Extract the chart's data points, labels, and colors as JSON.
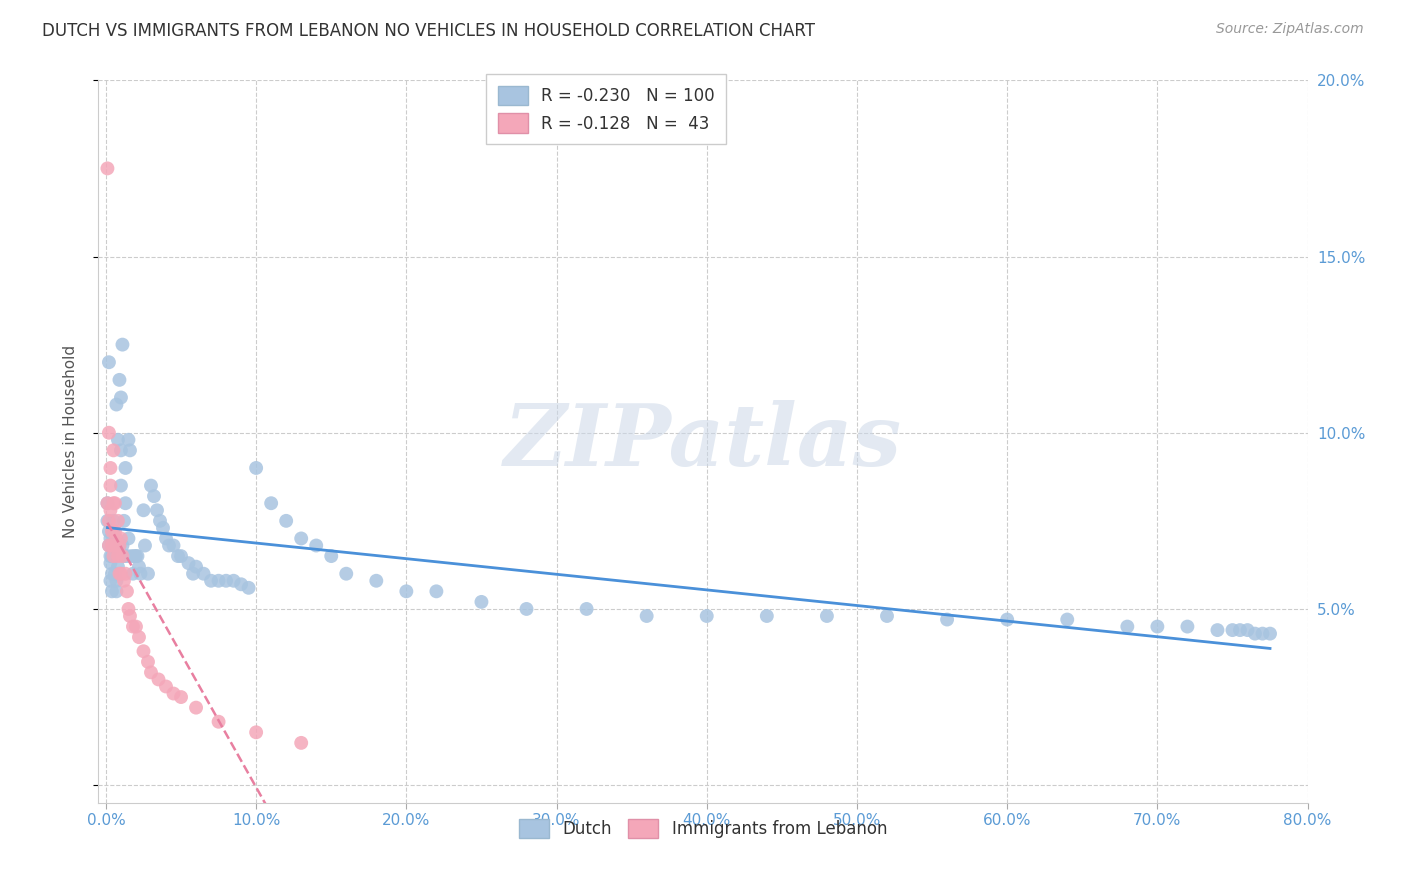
{
  "title": "DUTCH VS IMMIGRANTS FROM LEBANON NO VEHICLES IN HOUSEHOLD CORRELATION CHART",
  "source": "Source: ZipAtlas.com",
  "ylabel": "No Vehicles in Household",
  "xlim": [
    0.0,
    0.8
  ],
  "ylim": [
    0.0,
    0.2
  ],
  "x_ticks": [
    0.0,
    0.1,
    0.2,
    0.3,
    0.4,
    0.5,
    0.6,
    0.7,
    0.8
  ],
  "y_ticks": [
    0.0,
    0.05,
    0.1,
    0.15,
    0.2
  ],
  "dutch_R": -0.23,
  "dutch_N": 100,
  "lebanon_R": -0.128,
  "lebanon_N": 43,
  "dutch_color": "#a8c4e0",
  "lebanon_color": "#f4a7b9",
  "dutch_line_color": "#4a90d9",
  "lebanon_line_color": "#e87fa0",
  "watermark": "ZIPatlas",
  "dutch_x": [
    0.001,
    0.001,
    0.002,
    0.002,
    0.002,
    0.003,
    0.003,
    0.003,
    0.003,
    0.004,
    0.004,
    0.004,
    0.004,
    0.005,
    0.005,
    0.005,
    0.006,
    0.006,
    0.006,
    0.007,
    0.007,
    0.007,
    0.008,
    0.008,
    0.009,
    0.009,
    0.01,
    0.01,
    0.01,
    0.011,
    0.011,
    0.012,
    0.012,
    0.013,
    0.013,
    0.014,
    0.015,
    0.015,
    0.016,
    0.017,
    0.018,
    0.019,
    0.02,
    0.021,
    0.022,
    0.023,
    0.025,
    0.026,
    0.028,
    0.03,
    0.032,
    0.034,
    0.036,
    0.038,
    0.04,
    0.042,
    0.045,
    0.048,
    0.05,
    0.055,
    0.058,
    0.06,
    0.065,
    0.07,
    0.075,
    0.08,
    0.085,
    0.09,
    0.095,
    0.1,
    0.11,
    0.12,
    0.13,
    0.14,
    0.15,
    0.16,
    0.18,
    0.2,
    0.22,
    0.25,
    0.28,
    0.32,
    0.36,
    0.4,
    0.44,
    0.48,
    0.52,
    0.56,
    0.6,
    0.64,
    0.68,
    0.7,
    0.72,
    0.74,
    0.75,
    0.755,
    0.76,
    0.765,
    0.77,
    0.775
  ],
  "dutch_y": [
    0.075,
    0.08,
    0.072,
    0.12,
    0.068,
    0.065,
    0.07,
    0.063,
    0.058,
    0.055,
    0.06,
    0.065,
    0.068,
    0.07,
    0.075,
    0.072,
    0.068,
    0.065,
    0.06,
    0.108,
    0.055,
    0.058,
    0.062,
    0.098,
    0.115,
    0.068,
    0.085,
    0.095,
    0.11,
    0.068,
    0.125,
    0.075,
    0.065,
    0.09,
    0.08,
    0.065,
    0.098,
    0.07,
    0.095,
    0.065,
    0.06,
    0.065,
    0.065,
    0.065,
    0.062,
    0.06,
    0.078,
    0.068,
    0.06,
    0.085,
    0.082,
    0.078,
    0.075,
    0.073,
    0.07,
    0.068,
    0.068,
    0.065,
    0.065,
    0.063,
    0.06,
    0.062,
    0.06,
    0.058,
    0.058,
    0.058,
    0.058,
    0.057,
    0.056,
    0.09,
    0.08,
    0.075,
    0.07,
    0.068,
    0.065,
    0.06,
    0.058,
    0.055,
    0.055,
    0.052,
    0.05,
    0.05,
    0.048,
    0.048,
    0.048,
    0.048,
    0.048,
    0.047,
    0.047,
    0.047,
    0.045,
    0.045,
    0.045,
    0.044,
    0.044,
    0.044,
    0.044,
    0.043,
    0.043,
    0.043
  ],
  "lebanon_x": [
    0.001,
    0.001,
    0.002,
    0.002,
    0.002,
    0.003,
    0.003,
    0.003,
    0.004,
    0.004,
    0.005,
    0.005,
    0.005,
    0.006,
    0.006,
    0.007,
    0.007,
    0.008,
    0.008,
    0.009,
    0.009,
    0.01,
    0.01,
    0.011,
    0.012,
    0.013,
    0.014,
    0.015,
    0.016,
    0.018,
    0.02,
    0.022,
    0.025,
    0.028,
    0.03,
    0.035,
    0.04,
    0.045,
    0.05,
    0.06,
    0.075,
    0.1,
    0.13
  ],
  "lebanon_y": [
    0.175,
    0.08,
    0.1,
    0.075,
    0.068,
    0.09,
    0.085,
    0.078,
    0.072,
    0.068,
    0.095,
    0.08,
    0.065,
    0.08,
    0.072,
    0.07,
    0.068,
    0.075,
    0.065,
    0.068,
    0.06,
    0.07,
    0.06,
    0.065,
    0.058,
    0.06,
    0.055,
    0.05,
    0.048,
    0.045,
    0.045,
    0.042,
    0.038,
    0.035,
    0.032,
    0.03,
    0.028,
    0.026,
    0.025,
    0.022,
    0.018,
    0.015,
    0.012
  ]
}
